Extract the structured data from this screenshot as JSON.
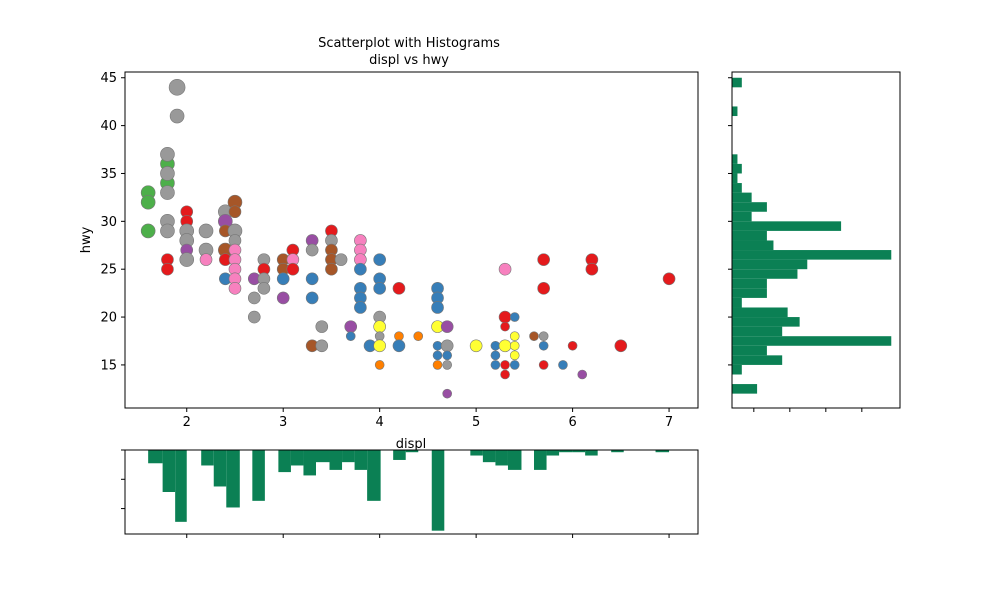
{
  "chart_data": {
    "type": "scatter",
    "title": "Scatterplot with Histograms",
    "subtitle": "displ vs hwy",
    "xlabel": "displ",
    "ylabel": "hwy",
    "xlim": [
      1.36,
      7.3
    ],
    "ylim": [
      10.5,
      45.6
    ],
    "x_ticks": [
      "2",
      "3",
      "4",
      "5",
      "6",
      "7"
    ],
    "y_ticks": [
      "15",
      "20",
      "25",
      "30",
      "35",
      "40",
      "45"
    ],
    "grid": false,
    "colors": {
      "red": "#e41a1c",
      "blue": "#377eb8",
      "green": "#4daf4a",
      "purple": "#984ea3",
      "orange": "#ff7f00",
      "yellow": "#ffff33",
      "brown": "#a65628",
      "pink": "#f781bf",
      "gray": "#999999",
      "hist": "#0b8054"
    },
    "points": [
      {
        "x": 1.6,
        "y": 33,
        "c": "green",
        "s": 2
      },
      {
        "x": 1.6,
        "y": 32,
        "c": "green",
        "s": 2
      },
      {
        "x": 1.6,
        "y": 29,
        "c": "green",
        "s": 2
      },
      {
        "x": 1.8,
        "y": 36,
        "c": "green",
        "s": 2
      },
      {
        "x": 1.8,
        "y": 34,
        "c": "green",
        "s": 2
      },
      {
        "x": 1.8,
        "y": 37,
        "c": "gray",
        "s": 2
      },
      {
        "x": 1.8,
        "y": 35,
        "c": "gray",
        "s": 2
      },
      {
        "x": 1.8,
        "y": 33,
        "c": "gray",
        "s": 2
      },
      {
        "x": 1.8,
        "y": 30,
        "c": "gray",
        "s": 2
      },
      {
        "x": 1.8,
        "y": 29,
        "c": "gray",
        "s": 2
      },
      {
        "x": 1.8,
        "y": 26,
        "c": "red",
        "s": 1
      },
      {
        "x": 1.8,
        "y": 25,
        "c": "red",
        "s": 1
      },
      {
        "x": 1.9,
        "y": 44,
        "c": "gray",
        "s": 3
      },
      {
        "x": 1.9,
        "y": 41,
        "c": "gray",
        "s": 2
      },
      {
        "x": 2.0,
        "y": 31,
        "c": "red",
        "s": 1
      },
      {
        "x": 2.0,
        "y": 30,
        "c": "red",
        "s": 1
      },
      {
        "x": 2.0,
        "y": 29,
        "c": "gray",
        "s": 2
      },
      {
        "x": 2.0,
        "y": 28,
        "c": "gray",
        "s": 2
      },
      {
        "x": 2.0,
        "y": 27,
        "c": "purple",
        "s": 1
      },
      {
        "x": 2.0,
        "y": 26,
        "c": "gray",
        "s": 2
      },
      {
        "x": 2.2,
        "y": 29,
        "c": "gray",
        "s": 2
      },
      {
        "x": 2.2,
        "y": 27,
        "c": "gray",
        "s": 2
      },
      {
        "x": 2.2,
        "y": 26,
        "c": "pink",
        "s": 1
      },
      {
        "x": 2.4,
        "y": 31,
        "c": "gray",
        "s": 2
      },
      {
        "x": 2.4,
        "y": 30,
        "c": "purple",
        "s": 2
      },
      {
        "x": 2.4,
        "y": 29,
        "c": "brown",
        "s": 1
      },
      {
        "x": 2.4,
        "y": 27,
        "c": "brown",
        "s": 2
      },
      {
        "x": 2.4,
        "y": 26,
        "c": "red",
        "s": 1
      },
      {
        "x": 2.4,
        "y": 24,
        "c": "blue",
        "s": 1
      },
      {
        "x": 2.5,
        "y": 32,
        "c": "brown",
        "s": 2
      },
      {
        "x": 2.5,
        "y": 31,
        "c": "brown",
        "s": 1
      },
      {
        "x": 2.5,
        "y": 29,
        "c": "gray",
        "s": 2
      },
      {
        "x": 2.5,
        "y": 28,
        "c": "gray",
        "s": 1
      },
      {
        "x": 2.5,
        "y": 27,
        "c": "pink",
        "s": 1
      },
      {
        "x": 2.5,
        "y": 26,
        "c": "pink",
        "s": 1
      },
      {
        "x": 2.5,
        "y": 25,
        "c": "pink",
        "s": 1
      },
      {
        "x": 2.5,
        "y": 24,
        "c": "pink",
        "s": 1
      },
      {
        "x": 2.5,
        "y": 23,
        "c": "pink",
        "s": 1
      },
      {
        "x": 2.7,
        "y": 24,
        "c": "purple",
        "s": 1
      },
      {
        "x": 2.7,
        "y": 22,
        "c": "gray",
        "s": 1
      },
      {
        "x": 2.7,
        "y": 20,
        "c": "gray",
        "s": 1
      },
      {
        "x": 2.8,
        "y": 26,
        "c": "gray",
        "s": 1
      },
      {
        "x": 2.8,
        "y": 25,
        "c": "red",
        "s": 1
      },
      {
        "x": 2.8,
        "y": 24,
        "c": "gray",
        "s": 1
      },
      {
        "x": 2.8,
        "y": 23,
        "c": "gray",
        "s": 1
      },
      {
        "x": 3.0,
        "y": 26,
        "c": "brown",
        "s": 1
      },
      {
        "x": 3.0,
        "y": 25,
        "c": "brown",
        "s": 1
      },
      {
        "x": 3.0,
        "y": 24,
        "c": "blue",
        "s": 1
      },
      {
        "x": 3.0,
        "y": 22,
        "c": "purple",
        "s": 1
      },
      {
        "x": 3.1,
        "y": 27,
        "c": "red",
        "s": 1
      },
      {
        "x": 3.1,
        "y": 26,
        "c": "pink",
        "s": 1
      },
      {
        "x": 3.1,
        "y": 25,
        "c": "red",
        "s": 1
      },
      {
        "x": 3.3,
        "y": 28,
        "c": "purple",
        "s": 1
      },
      {
        "x": 3.3,
        "y": 27,
        "c": "gray",
        "s": 1
      },
      {
        "x": 3.3,
        "y": 24,
        "c": "blue",
        "s": 1
      },
      {
        "x": 3.3,
        "y": 22,
        "c": "blue",
        "s": 1
      },
      {
        "x": 3.3,
        "y": 17,
        "c": "brown",
        "s": 1
      },
      {
        "x": 3.4,
        "y": 19,
        "c": "gray",
        "s": 1
      },
      {
        "x": 3.4,
        "y": 17,
        "c": "gray",
        "s": 1
      },
      {
        "x": 3.5,
        "y": 29,
        "c": "red",
        "s": 1
      },
      {
        "x": 3.5,
        "y": 28,
        "c": "gray",
        "s": 1
      },
      {
        "x": 3.5,
        "y": 27,
        "c": "brown",
        "s": 1
      },
      {
        "x": 3.5,
        "y": 26,
        "c": "brown",
        "s": 1
      },
      {
        "x": 3.5,
        "y": 25,
        "c": "brown",
        "s": 1
      },
      {
        "x": 3.6,
        "y": 26,
        "c": "gray",
        "s": 1
      },
      {
        "x": 3.7,
        "y": 19,
        "c": "purple",
        "s": 1
      },
      {
        "x": 3.7,
        "y": 18,
        "c": "blue",
        "s": 0
      },
      {
        "x": 3.8,
        "y": 28,
        "c": "pink",
        "s": 1
      },
      {
        "x": 3.8,
        "y": 27,
        "c": "pink",
        "s": 1
      },
      {
        "x": 3.8,
        "y": 26,
        "c": "pink",
        "s": 1
      },
      {
        "x": 3.8,
        "y": 25,
        "c": "blue",
        "s": 1
      },
      {
        "x": 3.8,
        "y": 23,
        "c": "blue",
        "s": 1
      },
      {
        "x": 3.8,
        "y": 22,
        "c": "blue",
        "s": 1
      },
      {
        "x": 3.8,
        "y": 21,
        "c": "blue",
        "s": 1
      },
      {
        "x": 3.9,
        "y": 17,
        "c": "blue",
        "s": 1
      },
      {
        "x": 4.0,
        "y": 26,
        "c": "blue",
        "s": 1
      },
      {
        "x": 4.0,
        "y": 24,
        "c": "blue",
        "s": 1
      },
      {
        "x": 4.0,
        "y": 23,
        "c": "blue",
        "s": 1
      },
      {
        "x": 4.0,
        "y": 20,
        "c": "gray",
        "s": 1
      },
      {
        "x": 4.0,
        "y": 19,
        "c": "yellow",
        "s": 1
      },
      {
        "x": 4.0,
        "y": 18,
        "c": "gray",
        "s": 0
      },
      {
        "x": 4.0,
        "y": 17,
        "c": "yellow",
        "s": 1
      },
      {
        "x": 4.0,
        "y": 15,
        "c": "orange",
        "s": 0
      },
      {
        "x": 4.2,
        "y": 23,
        "c": "red",
        "s": 1
      },
      {
        "x": 4.2,
        "y": 18,
        "c": "orange",
        "s": 0
      },
      {
        "x": 4.2,
        "y": 17,
        "c": "blue",
        "s": 1
      },
      {
        "x": 4.4,
        "y": 18,
        "c": "orange",
        "s": 0
      },
      {
        "x": 4.6,
        "y": 23,
        "c": "blue",
        "s": 1
      },
      {
        "x": 4.6,
        "y": 22,
        "c": "blue",
        "s": 1
      },
      {
        "x": 4.6,
        "y": 21,
        "c": "blue",
        "s": 1
      },
      {
        "x": 4.6,
        "y": 19,
        "c": "yellow",
        "s": 1
      },
      {
        "x": 4.6,
        "y": 17,
        "c": "blue",
        "s": 0
      },
      {
        "x": 4.6,
        "y": 16,
        "c": "blue",
        "s": 0
      },
      {
        "x": 4.6,
        "y": 15,
        "c": "orange",
        "s": 0
      },
      {
        "x": 4.7,
        "y": 19,
        "c": "purple",
        "s": 1
      },
      {
        "x": 4.7,
        "y": 17,
        "c": "gray",
        "s": 1
      },
      {
        "x": 4.7,
        "y": 16,
        "c": "blue",
        "s": 0
      },
      {
        "x": 4.7,
        "y": 15,
        "c": "gray",
        "s": 0
      },
      {
        "x": 4.7,
        "y": 12,
        "c": "purple",
        "s": 0
      },
      {
        "x": 5.0,
        "y": 17,
        "c": "yellow",
        "s": 1
      },
      {
        "x": 5.2,
        "y": 17,
        "c": "blue",
        "s": 0
      },
      {
        "x": 5.2,
        "y": 16,
        "c": "blue",
        "s": 0
      },
      {
        "x": 5.2,
        "y": 15,
        "c": "blue",
        "s": 0
      },
      {
        "x": 5.3,
        "y": 25,
        "c": "pink",
        "s": 1
      },
      {
        "x": 5.3,
        "y": 20,
        "c": "red",
        "s": 1
      },
      {
        "x": 5.3,
        "y": 19,
        "c": "red",
        "s": 0
      },
      {
        "x": 5.3,
        "y": 17,
        "c": "yellow",
        "s": 1
      },
      {
        "x": 5.3,
        "y": 15,
        "c": "red",
        "s": 0
      },
      {
        "x": 5.3,
        "y": 14,
        "c": "red",
        "s": 0
      },
      {
        "x": 5.4,
        "y": 20,
        "c": "blue",
        "s": 0
      },
      {
        "x": 5.4,
        "y": 18,
        "c": "yellow",
        "s": 0
      },
      {
        "x": 5.4,
        "y": 17,
        "c": "yellow",
        "s": 0
      },
      {
        "x": 5.4,
        "y": 16,
        "c": "yellow",
        "s": 0
      },
      {
        "x": 5.4,
        "y": 15,
        "c": "blue",
        "s": 0
      },
      {
        "x": 5.6,
        "y": 18,
        "c": "brown",
        "s": 0
      },
      {
        "x": 5.7,
        "y": 26,
        "c": "red",
        "s": 1
      },
      {
        "x": 5.7,
        "y": 23,
        "c": "red",
        "s": 1
      },
      {
        "x": 5.7,
        "y": 18,
        "c": "gray",
        "s": 0
      },
      {
        "x": 5.7,
        "y": 17,
        "c": "blue",
        "s": 0
      },
      {
        "x": 5.7,
        "y": 15,
        "c": "red",
        "s": 0
      },
      {
        "x": 5.9,
        "y": 15,
        "c": "blue",
        "s": 0
      },
      {
        "x": 6.0,
        "y": 17,
        "c": "red",
        "s": 0
      },
      {
        "x": 6.1,
        "y": 14,
        "c": "purple",
        "s": 0
      },
      {
        "x": 6.2,
        "y": 26,
        "c": "red",
        "s": 1
      },
      {
        "x": 6.2,
        "y": 25,
        "c": "red",
        "s": 1
      },
      {
        "x": 6.5,
        "y": 17,
        "c": "red",
        "s": 1
      },
      {
        "x": 7.0,
        "y": 24,
        "c": "red",
        "s": 1
      }
    ],
    "hist_y": {
      "bins": [
        [
          12,
          13,
          2.3
        ],
        [
          14,
          15,
          0.9
        ],
        [
          15,
          16,
          4.6
        ],
        [
          16,
          17,
          3.2
        ],
        [
          17,
          18,
          14.6
        ],
        [
          18,
          19,
          4.6
        ],
        [
          19,
          20,
          6.2
        ],
        [
          20,
          21,
          5.1
        ],
        [
          21,
          22,
          0.9
        ],
        [
          22,
          23,
          3.2
        ],
        [
          23,
          24,
          3.2
        ],
        [
          24,
          25,
          6.0
        ],
        [
          25,
          26,
          6.9
        ],
        [
          26,
          27,
          14.6
        ],
        [
          27,
          28,
          3.8
        ],
        [
          28,
          29,
          3.2
        ],
        [
          29,
          30,
          10.0
        ],
        [
          30,
          31,
          1.8
        ],
        [
          31,
          32,
          3.2
        ],
        [
          32,
          33,
          1.8
        ],
        [
          33,
          34,
          0.9
        ],
        [
          34,
          35,
          0.5
        ],
        [
          35,
          36,
          0.9
        ],
        [
          36,
          37,
          0.5
        ],
        [
          41,
          42,
          0.5
        ],
        [
          44,
          45,
          0.9
        ]
      ],
      "max": 15.4
    },
    "hist_x": {
      "bins": [
        [
          1.6,
          1.75,
          1.2
        ],
        [
          1.75,
          1.88,
          3.8
        ],
        [
          1.88,
          2.0,
          6.5
        ],
        [
          2.15,
          2.28,
          1.4
        ],
        [
          2.28,
          2.41,
          3.3
        ],
        [
          2.41,
          2.55,
          5.2
        ],
        [
          2.68,
          2.81,
          4.6
        ],
        [
          2.95,
          3.08,
          2.0
        ],
        [
          3.08,
          3.21,
          1.4
        ],
        [
          3.21,
          3.34,
          2.3
        ],
        [
          3.34,
          3.48,
          1.1
        ],
        [
          3.48,
          3.61,
          1.8
        ],
        [
          3.61,
          3.74,
          1.1
        ],
        [
          3.74,
          3.87,
          1.8
        ],
        [
          3.87,
          4.01,
          4.6
        ],
        [
          4.14,
          4.27,
          0.9
        ],
        [
          4.27,
          4.4,
          0.2
        ],
        [
          4.54,
          4.67,
          7.3
        ],
        [
          4.94,
          5.07,
          0.5
        ],
        [
          5.07,
          5.2,
          1.1
        ],
        [
          5.2,
          5.33,
          1.4
        ],
        [
          5.33,
          5.47,
          1.8
        ],
        [
          5.6,
          5.73,
          1.8
        ],
        [
          5.73,
          5.86,
          0.5
        ],
        [
          5.86,
          6.0,
          0.2
        ],
        [
          6.0,
          6.13,
          0.2
        ],
        [
          6.13,
          6.26,
          0.5
        ],
        [
          6.4,
          6.53,
          0.2
        ],
        [
          6.86,
          7.0,
          0.2
        ]
      ],
      "max": 7.6
    }
  }
}
